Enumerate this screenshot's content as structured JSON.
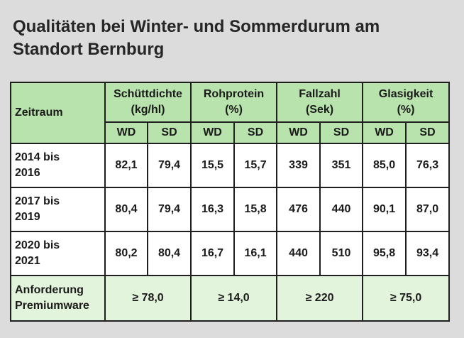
{
  "title_line1": "Qualitäten bei Winter- und Sommerdurum am",
  "title_line2": "Standort Bernburg",
  "header": {
    "zeitraum": "Zeitraum",
    "groups": [
      {
        "line1": "Schüttdichte",
        "line2": "(kg/hl)"
      },
      {
        "line1": "Rohprotein",
        "line2": "(%)"
      },
      {
        "line1": "Fallzahl",
        "line2": "(Sek)"
      },
      {
        "line1": "Glasigkeit",
        "line2": "(%)"
      }
    ],
    "wd": "WD",
    "sd": "SD"
  },
  "rows": [
    {
      "label1": "2014 bis",
      "label2": "2016",
      "values": [
        "82,1",
        "79,4",
        "15,5",
        "15,7",
        "339",
        "351",
        "85,0",
        "76,3"
      ]
    },
    {
      "label1": "2017 bis",
      "label2": "2019",
      "values": [
        "80,4",
        "79,4",
        "16,3",
        "15,8",
        "476",
        "440",
        "90,1",
        "87,0"
      ]
    },
    {
      "label1": "2020 bis",
      "label2": "2021",
      "values": [
        "80,2",
        "80,4",
        "16,7",
        "16,1",
        "440",
        "510",
        "95,8",
        "93,4"
      ]
    }
  ],
  "footer": {
    "label1": "Anforderung",
    "label2": "Premiumware",
    "values": [
      "≥ 78,0",
      "≥ 14,0",
      "≥ 220",
      "≥ 75,0"
    ]
  },
  "colors": {
    "header_green": "#b9e3ad",
    "footer_green": "#e3f4dc",
    "background": "#dcdcdc",
    "border": "#1f1f1f"
  }
}
